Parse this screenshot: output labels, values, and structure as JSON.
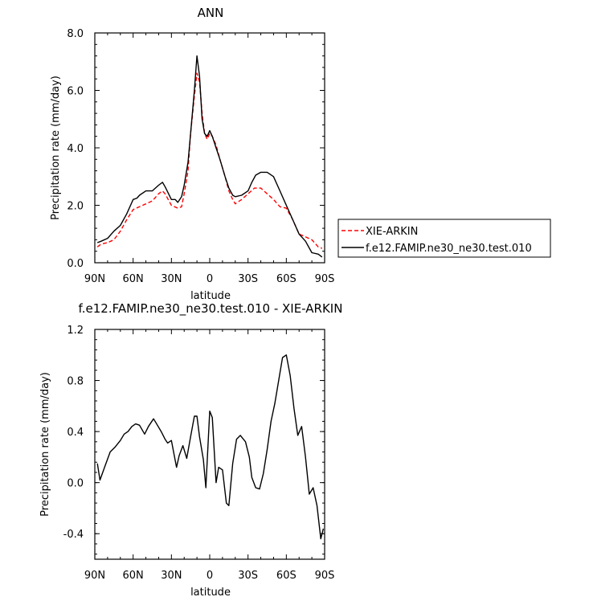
{
  "chart_data": [
    {
      "type": "line",
      "title": "ANN",
      "xlabel": "latitude",
      "ylabel": "Precipitation rate (mm/day)",
      "xlim": [
        90,
        -90
      ],
      "ylim": [
        0,
        8
      ],
      "x_ticks": [
        90,
        60,
        30,
        0,
        -30,
        -60,
        -90
      ],
      "x_tick_labels": [
        "90N",
        "60N",
        "30N",
        "0",
        "30S",
        "60S",
        "90S"
      ],
      "y_ticks": [
        0,
        2,
        4,
        6,
        8
      ],
      "y_tick_labels": [
        "0.0",
        "2.0",
        "4.0",
        "6.0",
        "8.0"
      ],
      "grid": false,
      "legend": "right",
      "series": [
        {
          "name": "XIE-ARKIN",
          "color": "#ff0000",
          "dash": "dashed",
          "x": [
            88,
            85,
            80,
            75,
            70,
            65,
            60,
            55,
            50,
            45,
            40,
            37,
            35,
            30,
            25,
            22,
            20,
            17,
            15,
            12,
            10,
            8,
            6,
            4,
            2,
            0,
            -2,
            -5,
            -8,
            -12,
            -15,
            -18,
            -20,
            -25,
            -30,
            -35,
            -40,
            -45,
            -50,
            -55,
            -60,
            -65,
            -70,
            -75,
            -80,
            -85,
            -88
          ],
          "y": [
            0.55,
            0.65,
            0.7,
            0.8,
            1.1,
            1.5,
            1.85,
            1.95,
            2.05,
            2.15,
            2.4,
            2.5,
            2.4,
            2.0,
            1.9,
            1.95,
            2.4,
            3.2,
            4.5,
            5.8,
            6.6,
            6.3,
            5.2,
            4.5,
            4.3,
            4.5,
            4.4,
            4.1,
            3.6,
            3.0,
            2.5,
            2.2,
            2.05,
            2.2,
            2.4,
            2.6,
            2.6,
            2.4,
            2.2,
            1.95,
            1.9,
            1.5,
            1.0,
            0.9,
            0.8,
            0.55,
            0.5
          ]
        },
        {
          "name": "f.e12.FAMIP.ne30_ne30.test.010",
          "color": "#000000",
          "dash": "solid",
          "x": [
            88,
            85,
            80,
            75,
            70,
            65,
            60,
            57,
            55,
            50,
            45,
            40,
            37,
            35,
            30,
            27,
            25,
            22,
            20,
            17,
            15,
            12,
            10,
            8,
            6,
            4,
            2,
            0,
            -2,
            -5,
            -8,
            -12,
            -15,
            -18,
            -20,
            -25,
            -30,
            -33,
            -36,
            -40,
            -45,
            -50,
            -55,
            -60,
            -65,
            -70,
            -75,
            -80,
            -85,
            -88
          ],
          "y": [
            0.7,
            0.75,
            0.85,
            1.1,
            1.3,
            1.7,
            2.2,
            2.25,
            2.35,
            2.5,
            2.5,
            2.7,
            2.8,
            2.65,
            2.2,
            2.2,
            2.1,
            2.3,
            2.7,
            3.5,
            4.5,
            6.0,
            7.2,
            6.5,
            5.0,
            4.5,
            4.4,
            4.6,
            4.4,
            4.0,
            3.6,
            3.0,
            2.6,
            2.35,
            2.3,
            2.35,
            2.5,
            2.8,
            3.05,
            3.15,
            3.15,
            3.0,
            2.5,
            2.0,
            1.5,
            1.0,
            0.75,
            0.35,
            0.3,
            0.2
          ]
        }
      ]
    },
    {
      "type": "line",
      "title": "f.e12.FAMIP.ne30_ne30.test.010 - XIE-ARKIN",
      "xlabel": "latitude",
      "ylabel": "Precipitation rate (mm/day)",
      "xlim": [
        90,
        -90
      ],
      "ylim": [
        -0.6,
        1.2
      ],
      "x_ticks": [
        90,
        60,
        30,
        0,
        -30,
        -60,
        -90
      ],
      "x_tick_labels": [
        "90N",
        "60N",
        "30N",
        "0",
        "30S",
        "60S",
        "90S"
      ],
      "y_ticks": [
        -0.4,
        0,
        0.4,
        0.8,
        1.2
      ],
      "y_tick_labels": [
        "-0.4",
        "0.0",
        "0.4",
        "0.8",
        "1.2"
      ],
      "grid": false,
      "series": [
        {
          "color": "#000000",
          "dash": "solid",
          "x": [
            88,
            86,
            82,
            78,
            74,
            70,
            67,
            64,
            61,
            58,
            55,
            51,
            48,
            44,
            41,
            38,
            35,
            33,
            30,
            26,
            24,
            21,
            18,
            15,
            12,
            10,
            8,
            5,
            3,
            0,
            -2,
            -5,
            -7,
            -10,
            -13,
            -15,
            -18,
            -21,
            -24,
            -28,
            -31,
            -33,
            -36,
            -39,
            -42,
            -45,
            -48,
            -51,
            -54,
            -57,
            -60,
            -63,
            -66,
            -69,
            -72,
            -75,
            -78,
            -81,
            -84,
            -87,
            -89
          ],
          "y": [
            0.15,
            0.02,
            0.13,
            0.24,
            0.28,
            0.33,
            0.38,
            0.4,
            0.44,
            0.46,
            0.45,
            0.38,
            0.44,
            0.5,
            0.45,
            0.4,
            0.34,
            0.31,
            0.33,
            0.12,
            0.21,
            0.29,
            0.19,
            0.36,
            0.52,
            0.52,
            0.36,
            0.18,
            -0.04,
            0.56,
            0.51,
            0.0,
            0.12,
            0.1,
            -0.16,
            -0.18,
            0.15,
            0.34,
            0.37,
            0.32,
            0.2,
            0.04,
            -0.04,
            -0.05,
            0.07,
            0.26,
            0.48,
            0.62,
            0.8,
            0.98,
            1.0,
            0.84,
            0.58,
            0.37,
            0.44,
            0.2,
            -0.09,
            -0.04,
            -0.18,
            -0.44,
            -0.36
          ]
        }
      ]
    }
  ]
}
